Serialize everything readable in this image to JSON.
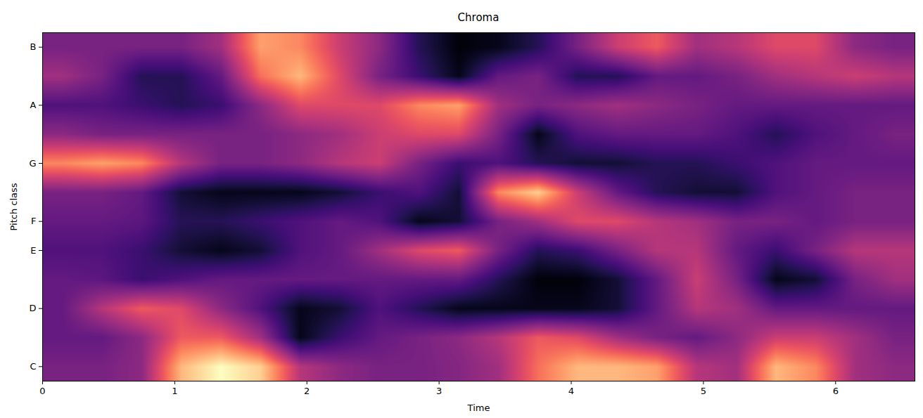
{
  "chart_data": {
    "type": "heatmap",
    "title": "Chroma",
    "x_label": "Time",
    "y_label": "Pitch class",
    "xlim": [
      0,
      6.6
    ],
    "xticks": [
      0,
      1,
      2,
      3,
      4,
      5,
      6
    ],
    "ylim": [
      -0.5,
      11.5
    ],
    "yticks": [
      {
        "value": 0,
        "label": "C"
      },
      {
        "value": 2,
        "label": "D"
      },
      {
        "value": 4,
        "label": "E"
      },
      {
        "value": 5,
        "label": "F"
      },
      {
        "value": 7,
        "label": "G"
      },
      {
        "value": 9,
        "label": "A"
      },
      {
        "value": 11,
        "label": "B"
      }
    ],
    "color": "magma",
    "color_range": [
      0,
      1
    ],
    "values": [
      [
        0.35,
        0.35,
        0.4,
        0.85,
        1.0,
        0.9,
        0.5,
        0.4,
        0.35,
        0.35,
        0.38,
        0.45,
        0.7,
        0.85,
        0.85,
        0.8,
        0.5,
        0.45,
        0.85,
        0.75,
        0.45,
        0.4
      ],
      [
        0.3,
        0.3,
        0.4,
        0.65,
        0.65,
        0.45,
        0.05,
        0.2,
        0.3,
        0.35,
        0.4,
        0.5,
        0.65,
        0.6,
        0.45,
        0.35,
        0.3,
        0.4,
        0.55,
        0.55,
        0.45,
        0.35
      ],
      [
        0.3,
        0.5,
        0.65,
        0.6,
        0.4,
        0.25,
        0.05,
        0.1,
        0.25,
        0.15,
        0.05,
        0.05,
        0.05,
        0.05,
        0.1,
        0.3,
        0.5,
        0.45,
        0.3,
        0.3,
        0.3,
        0.3
      ],
      [
        0.3,
        0.28,
        0.2,
        0.25,
        0.3,
        0.3,
        0.3,
        0.3,
        0.3,
        0.3,
        0.3,
        0.15,
        0.02,
        0.02,
        0.1,
        0.3,
        0.55,
        0.35,
        0.05,
        0.1,
        0.35,
        0.45
      ],
      [
        0.25,
        0.25,
        0.2,
        0.1,
        0.05,
        0.1,
        0.25,
        0.3,
        0.45,
        0.6,
        0.65,
        0.35,
        0.15,
        0.2,
        0.35,
        0.5,
        0.5,
        0.3,
        0.2,
        0.35,
        0.5,
        0.5
      ],
      [
        0.3,
        0.3,
        0.28,
        0.15,
        0.15,
        0.2,
        0.25,
        0.3,
        0.25,
        0.05,
        0.1,
        0.35,
        0.45,
        0.6,
        0.6,
        0.5,
        0.45,
        0.35,
        0.35,
        0.3,
        0.35,
        0.35
      ],
      [
        0.35,
        0.35,
        0.3,
        0.1,
        0.05,
        0.05,
        0.05,
        0.1,
        0.2,
        0.25,
        0.1,
        0.75,
        0.9,
        0.55,
        0.3,
        0.15,
        0.1,
        0.1,
        0.25,
        0.3,
        0.35,
        0.35
      ],
      [
        0.75,
        0.8,
        0.75,
        0.5,
        0.35,
        0.35,
        0.4,
        0.5,
        0.55,
        0.35,
        0.2,
        0.25,
        0.15,
        0.1,
        0.1,
        0.15,
        0.15,
        0.2,
        0.25,
        0.3,
        0.3,
        0.3
      ],
      [
        0.4,
        0.35,
        0.35,
        0.35,
        0.35,
        0.35,
        0.4,
        0.45,
        0.55,
        0.6,
        0.6,
        0.35,
        0.05,
        0.25,
        0.3,
        0.3,
        0.3,
        0.25,
        0.15,
        0.25,
        0.3,
        0.35
      ],
      [
        0.25,
        0.25,
        0.2,
        0.15,
        0.2,
        0.4,
        0.6,
        0.6,
        0.6,
        0.75,
        0.8,
        0.45,
        0.35,
        0.4,
        0.45,
        0.4,
        0.35,
        0.3,
        0.3,
        0.3,
        0.3,
        0.3
      ],
      [
        0.45,
        0.35,
        0.15,
        0.15,
        0.3,
        0.7,
        0.85,
        0.6,
        0.35,
        0.2,
        0.05,
        0.3,
        0.35,
        0.15,
        0.15,
        0.3,
        0.3,
        0.35,
        0.45,
        0.5,
        0.55,
        0.5
      ],
      [
        0.35,
        0.35,
        0.35,
        0.35,
        0.45,
        0.8,
        0.75,
        0.55,
        0.4,
        0.15,
        0.02,
        0.05,
        0.15,
        0.35,
        0.55,
        0.65,
        0.45,
        0.5,
        0.6,
        0.6,
        0.4,
        0.35
      ]
    ]
  }
}
